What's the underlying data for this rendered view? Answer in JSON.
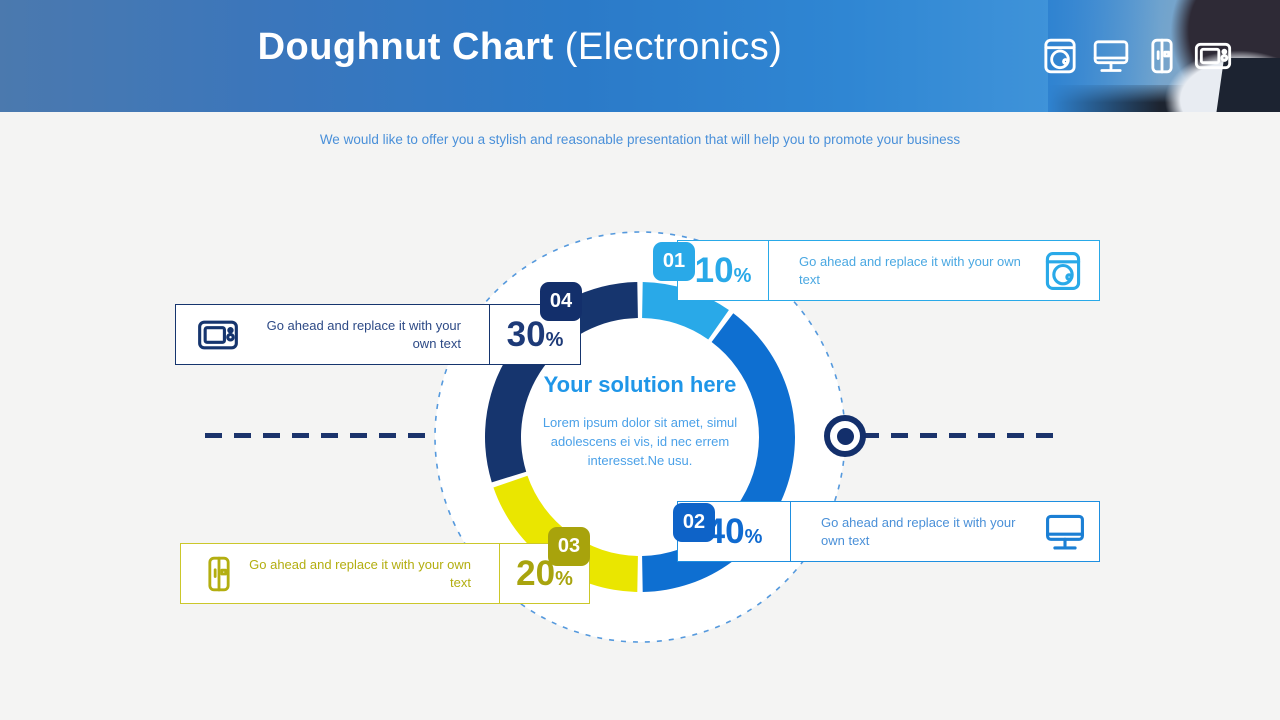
{
  "slide": {
    "title": {
      "bold": "Doughnut Chart",
      "light": "(Electronics)"
    },
    "subtitle": "We would like to offer you a stylish and reasonable presentation that will help you to promote your business",
    "background_color": "#f4f4f3",
    "header_gradient": [
      "#4b79ae",
      "#2b7ac8",
      "#3f93d9"
    ]
  },
  "header_icons": [
    {
      "name": "washing-machine-icon"
    },
    {
      "name": "monitor-icon"
    },
    {
      "name": "refrigerator-icon"
    },
    {
      "name": "microwave-icon"
    }
  ],
  "center": {
    "heading": "Your solution here",
    "body": "Lorem ipsum dolor sit amet, simul adolescens ei vis, id nec errem interesset.Ne usu.",
    "heading_color": "#1f96e8",
    "body_color": "#4ba1e8"
  },
  "chart_data": {
    "type": "pie",
    "variant": "doughnut",
    "title": "Doughnut Chart (Electronics)",
    "unit": "%",
    "start_angle_deg": 0,
    "clockwise": true,
    "gap_deg": 2,
    "outer_radius": 155,
    "inner_radius": 119,
    "segments": [
      {
        "id": "01",
        "value": 10,
        "color": "#29a9e8",
        "icon": "washing-machine-icon"
      },
      {
        "id": "02",
        "value": 40,
        "color": "#0e6fd1",
        "icon": "monitor-icon"
      },
      {
        "id": "03",
        "value": 20,
        "color": "#eae600",
        "icon": "refrigerator-icon"
      },
      {
        "id": "04",
        "value": 30,
        "color": "#16356e",
        "icon": "microwave-icon"
      }
    ]
  },
  "callouts": [
    {
      "number": "01",
      "percent": "10",
      "percent_sign": "%",
      "text": "Go ahead and replace it with your own text",
      "icon": "washing-machine-icon",
      "accent": "#29a9e8"
    },
    {
      "number": "02",
      "percent": "40",
      "percent_sign": "%",
      "text": "Go ahead and replace it with your own text",
      "icon": "monitor-icon",
      "accent": "#0e63c8"
    },
    {
      "number": "03",
      "percent": "20",
      "percent_sign": "%",
      "text": "Go ahead and replace it with your own text",
      "icon": "refrigerator-icon",
      "accent": "#a8a40e",
      "border": "#cbc72a"
    },
    {
      "number": "04",
      "percent": "30",
      "percent_sign": "%",
      "text": "Go ahead and replace it with your own text",
      "icon": "microwave-icon",
      "accent": "#16356e"
    }
  ],
  "decor": {
    "dash_line_color": "#1b336b",
    "dotted_circle_color": "#5599dd",
    "bullseye_color": "#132f6b"
  }
}
